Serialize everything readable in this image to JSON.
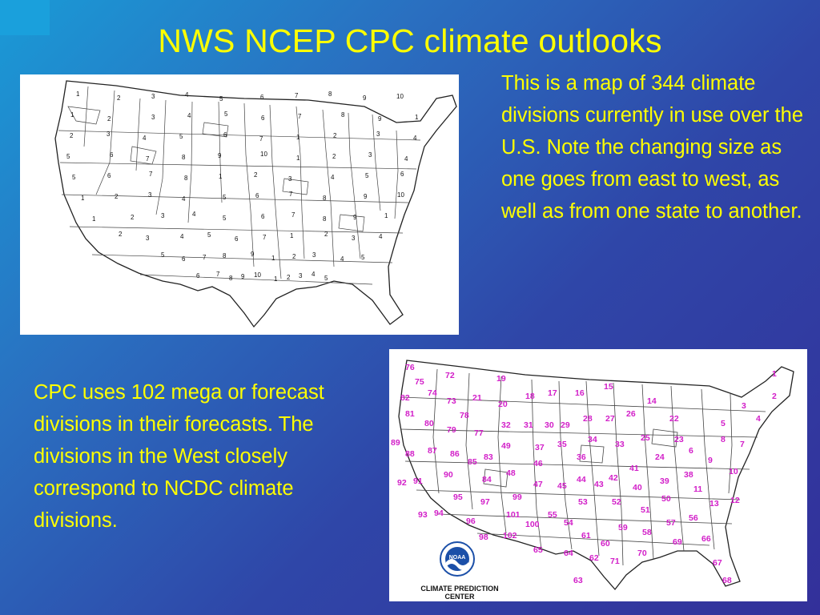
{
  "slide": {
    "title": "NWS NCEP CPC climate outlooks",
    "text_top": "This is a map of 344 climate divisions currently in use over the U.S. Note the changing size as one goes from east to west, as well as from one state to another.",
    "text_bottom": "CPC uses 102 mega or forecast divisions in their forecasts. The divisions in the West closely correspond to NCDC climate divisions."
  },
  "colors": {
    "title": "#ffff00",
    "body_text": "#ffff00",
    "forecast_division_labels": "#d21ec8",
    "noaa_blue": "#1b4fa8"
  },
  "climate_divisions_map": {
    "labels": [
      "1",
      "2",
      "3",
      "4",
      "5",
      "6",
      "7",
      "8",
      "9",
      "10",
      "1",
      "2",
      "3",
      "4",
      "5",
      "6",
      "7",
      "8",
      "9",
      "1",
      "2",
      "3",
      "4",
      "5",
      "6",
      "7",
      "1",
      "2",
      "3",
      "4",
      "5",
      "6",
      "7",
      "8",
      "9",
      "10",
      "1",
      "2",
      "3",
      "4",
      "5",
      "6",
      "7",
      "8",
      "1",
      "2",
      "3",
      "4",
      "5",
      "6",
      "1",
      "2",
      "3",
      "4",
      "5",
      "6",
      "7",
      "8",
      "9",
      "10",
      "1",
      "2",
      "3",
      "4",
      "5",
      "6",
      "7",
      "8",
      "9",
      "1",
      "2",
      "3",
      "4",
      "5",
      "6",
      "7",
      "1",
      "2",
      "3",
      "4",
      "5",
      "6",
      "7",
      "8",
      "9",
      "1",
      "2",
      "3",
      "4",
      "5",
      "6",
      "7",
      "8",
      "9",
      "10",
      "1",
      "2",
      "3",
      "4",
      "5",
      "6",
      "7"
    ]
  },
  "forecast_divisions_map": {
    "labels": [
      "1",
      "2",
      "3",
      "4",
      "5",
      "6",
      "7",
      "8",
      "9",
      "10",
      "11",
      "12",
      "13",
      "14",
      "15",
      "16",
      "17",
      "18",
      "19",
      "20",
      "21",
      "22",
      "23",
      "24",
      "25",
      "26",
      "27",
      "28",
      "29",
      "30",
      "31",
      "32",
      "33",
      "34",
      "35",
      "36",
      "37",
      "38",
      "39",
      "40",
      "41",
      "42",
      "43",
      "44",
      "45",
      "46",
      "47",
      "48",
      "49",
      "50",
      "51",
      "52",
      "53",
      "54",
      "55",
      "56",
      "57",
      "58",
      "59",
      "60",
      "61",
      "62",
      "63",
      "64",
      "65",
      "66",
      "67",
      "68",
      "69",
      "70",
      "71",
      "72",
      "73",
      "74",
      "75",
      "76",
      "77",
      "78",
      "79",
      "80",
      "81",
      "82",
      "83",
      "84",
      "85",
      "86",
      "87",
      "88",
      "89",
      "90",
      "91",
      "92",
      "93",
      "94",
      "95",
      "96",
      "97",
      "98",
      "99",
      "100",
      "101",
      "102"
    ],
    "logo": {
      "name": "NOAA",
      "caption_line1": "CLIMATE  PREDICTION",
      "caption_line2": "CENTER"
    }
  }
}
